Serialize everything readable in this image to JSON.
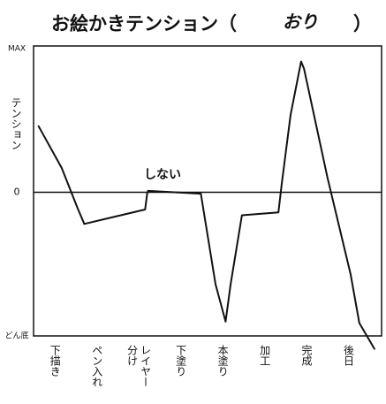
{
  "chart_data": {
    "type": "line",
    "title": "お絵かきテンション（",
    "title_note": "おり",
    "title_end": "）",
    "ylabel": "テンション",
    "annotation": "しない",
    "xlim": [
      -0.5,
      7.8
    ],
    "xticks": [
      {
        "value": 0,
        "label": "下描き"
      },
      {
        "value": 1,
        "label": "ペン入れ"
      },
      {
        "value": 2,
        "label": "レイヤー分け"
      },
      {
        "value": 3,
        "label": "下塗り"
      },
      {
        "value": 4,
        "label": "本塗り"
      },
      {
        "value": 5,
        "label": "加工"
      },
      {
        "value": 6,
        "label": "完成"
      },
      {
        "value": 7,
        "label": "後日"
      }
    ],
    "ylim": [
      -100,
      100
    ],
    "yticks": [
      {
        "value": 100,
        "label": "MAX"
      },
      0,
      {
        "value": -100,
        "label": "どん底"
      }
    ],
    "zero_line": true,
    "series": [
      {
        "color": "#111111",
        "x": [
          -0.38,
          0.17,
          0.55,
          0.71,
          2.16,
          2.21,
          2.23,
          3.49,
          3.84,
          4.08,
          4.2,
          4.47,
          5.34,
          5.42,
          5.63,
          5.88,
          5.95,
          6.51,
          7.06,
          7.27,
          7.63
        ],
        "values": [
          46,
          17,
          -11,
          -22,
          -12,
          -1,
          1,
          -1,
          -64,
          -90,
          -64,
          -16,
          -14,
          6,
          54,
          91,
          86,
          10,
          -57,
          -91,
          -109
        ]
      }
    ]
  }
}
